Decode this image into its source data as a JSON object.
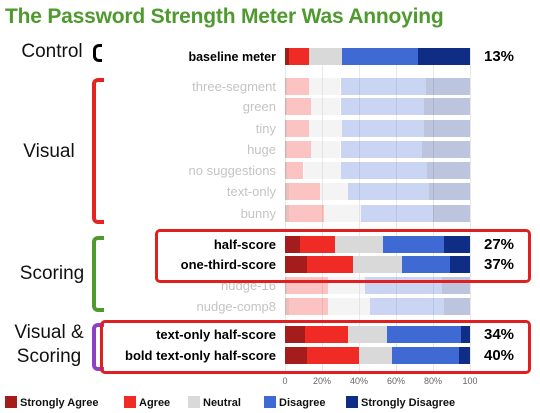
{
  "title": "The Password Strength Meter Was Annoying",
  "groups": {
    "control": "Control",
    "visual": "Visual",
    "scoring": "Scoring",
    "visual_scoring_1": "Visual &",
    "visual_scoring_2": "Scoring"
  },
  "colors": {
    "strongly_agree": "#a51c1c",
    "agree": "#f02a25",
    "neutral": "#d9d9d9",
    "disagree": "#3f69d3",
    "strongly_disagree": "#102d86"
  },
  "chart_data": {
    "type": "bar",
    "orientation": "horizontal",
    "stacked": true,
    "title": "The Password Strength Meter Was Annoying",
    "xlim": [
      0,
      100
    ],
    "x_ticks": [
      "0",
      "20%",
      "40%",
      "60%",
      "80%",
      "100"
    ],
    "categories": [
      "baseline meter",
      "three-segment",
      "green",
      "tiny",
      "huge",
      "no suggestions",
      "text-only",
      "bunny",
      "half-score",
      "one-third-score",
      "nudge-16",
      "nudge-comp8",
      "text-only half-score",
      "bold text-only half-score"
    ],
    "series": [
      {
        "name": "Strongly Agree",
        "values": [
          2,
          1,
          1,
          1,
          1,
          1,
          2,
          2,
          8,
          12,
          1,
          2,
          11,
          12
        ]
      },
      {
        "name": "Agree",
        "values": [
          11,
          12,
          13,
          12,
          13,
          9,
          17,
          19,
          19,
          25,
          22,
          21,
          23,
          28
        ]
      },
      {
        "name": "Neutral",
        "values": [
          18,
          17,
          16,
          18,
          16,
          20,
          15,
          20,
          26,
          26,
          20,
          23,
          21,
          18
        ]
      },
      {
        "name": "Disagree",
        "values": [
          41,
          46,
          45,
          44,
          44,
          47,
          44,
          39,
          33,
          26,
          42,
          40,
          40,
          36
        ]
      },
      {
        "name": "Strongly Disagree",
        "values": [
          28,
          24,
          25,
          25,
          26,
          23,
          22,
          20,
          14,
          11,
          15,
          14,
          5,
          6
        ]
      }
    ],
    "row_percent_labels": [
      "13%",
      "",
      "",
      "",
      "",
      "",
      "",
      "",
      "27%",
      "37%",
      "",
      "",
      "34%",
      "40%"
    ],
    "legend": {
      "entries": [
        "Strongly Agree",
        "Agree",
        "Neutral",
        "Disagree",
        "Strongly Disagree"
      ],
      "placement": "bottom"
    },
    "grid": true
  }
}
